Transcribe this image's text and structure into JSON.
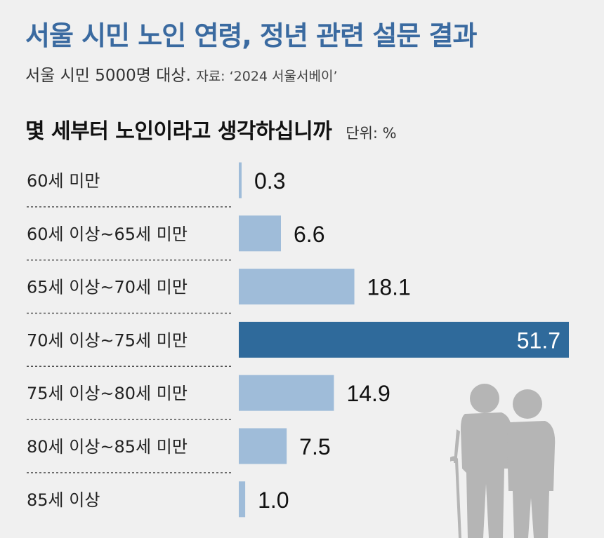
{
  "header": {
    "title": "서울 시민 노인 연령, 정년 관련 설문 결과",
    "subtitle": "서울 시민 5000명 대상.",
    "source": "자료: ‘2024 서울서베이’",
    "question": "몇 세부터 노인이라고 생각하십니까",
    "unit": "단위: %"
  },
  "colors": {
    "title": "#3a6aa0",
    "bar_default": "#9fbcd9",
    "bar_highlight": "#2f6a9b",
    "silhouette": "#b5b5b5",
    "divider": "#555555"
  },
  "chart_data": {
    "type": "bar",
    "orientation": "horizontal",
    "categories": [
      "60세 미만",
      "60세 이상~65세 미만",
      "65세 이상~70세 미만",
      "70세 이상~75세 미만",
      "75세 이상~80세 미만",
      "80세 이상~85세 미만",
      "85세 이상"
    ],
    "values": [
      0.3,
      6.6,
      18.1,
      51.7,
      14.9,
      7.5,
      1.0
    ],
    "value_labels": [
      "0.3",
      "6.6",
      "18.1",
      "51.7",
      "14.9",
      "7.5",
      "1.0"
    ],
    "highlight_index": 3,
    "xlim": [
      0,
      51.7
    ],
    "grid": false
  }
}
